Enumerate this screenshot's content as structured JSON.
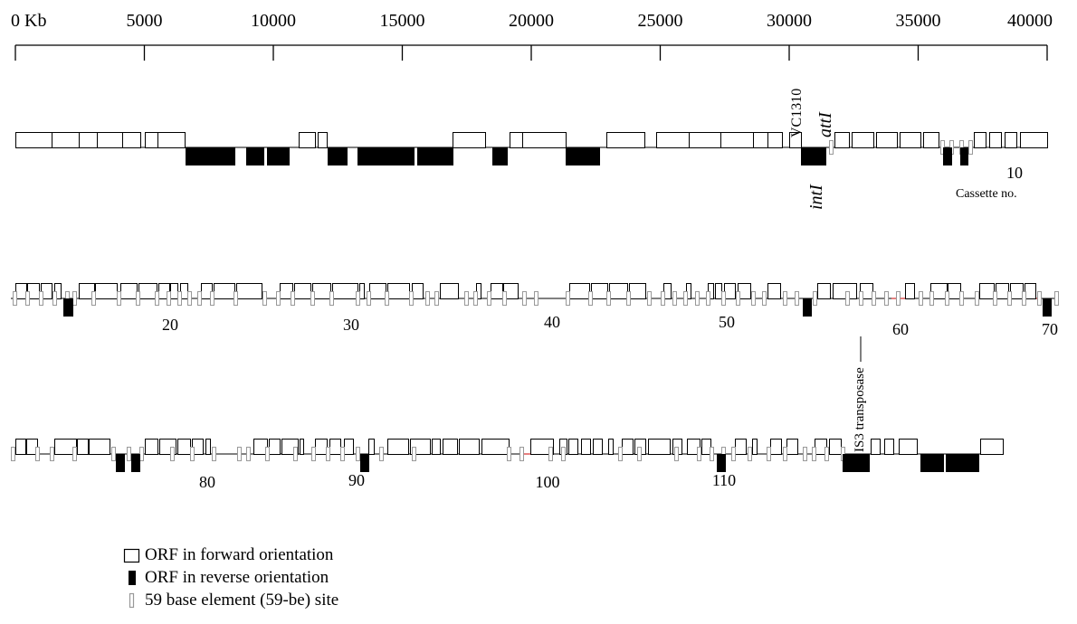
{
  "scale": {
    "unit_label": "0 Kb",
    "max_kb": 40000,
    "tick_labels": [
      "0 Kb",
      "5000",
      "10000",
      "15000",
      "20000",
      "25000",
      "30000",
      "35000",
      "40000"
    ]
  },
  "annotations": {
    "vc1310": "VC1310",
    "atti": "attI",
    "inti": "intI",
    "is3": "IS3 transposase",
    "cassette_no": "Cassette no."
  },
  "cassette_numbers": {
    "row1": [
      "10"
    ],
    "row2": [
      "20",
      "30",
      "40",
      "50",
      "60",
      "70"
    ],
    "row3": [
      "80",
      "90",
      "100",
      "110"
    ]
  },
  "legend": [
    {
      "symbol": "forward",
      "label": "ORF in forward orientation"
    },
    {
      "symbol": "reverse",
      "label": "ORF in reverse orientation"
    },
    {
      "symbol": "site",
      "label": "59 base element (59-be) site"
    }
  ],
  "colors": {
    "forward_fill": "#ffffff",
    "reverse_fill": "#000000",
    "site_stroke": "#999999",
    "line": "#000000",
    "red_segment": "#cc0000"
  }
}
